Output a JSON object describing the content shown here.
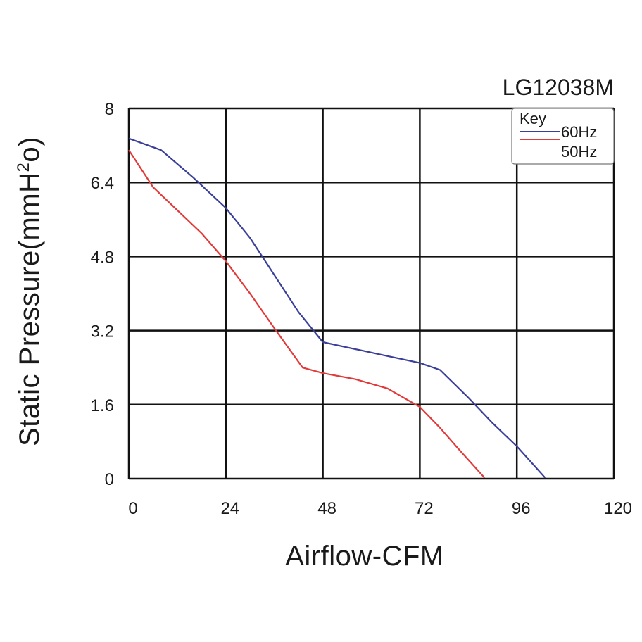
{
  "chart_data": {
    "type": "line",
    "title": "LG12038M",
    "xlabel": "Airflow-CFM",
    "ylabel": "Static Pressure(mmH",
    "ylabel_sup": "2",
    "ylabel_tail": "o)",
    "xlim": [
      0,
      120
    ],
    "ylim": [
      0,
      8
    ],
    "x_ticks": [
      0,
      24,
      48,
      72,
      96,
      120
    ],
    "x_tick_labels": [
      "0",
      "24",
      "48",
      "72",
      "96",
      "120"
    ],
    "y_ticks": [
      0,
      1.6,
      3.2,
      4.8,
      6.4,
      8
    ],
    "y_tick_labels": [
      "0",
      "1.6",
      "3.2",
      "4.8",
      "6.4",
      "8"
    ],
    "grid": true,
    "legend": {
      "title": "Key",
      "placement": "top-right"
    },
    "series": [
      {
        "name": "60Hz",
        "color": "#3a3f9a",
        "points": [
          [
            0,
            7.35
          ],
          [
            8,
            7.1
          ],
          [
            16,
            6.5
          ],
          [
            24,
            5.85
          ],
          [
            30,
            5.2
          ],
          [
            36,
            4.4
          ],
          [
            42,
            3.6
          ],
          [
            48,
            2.95
          ],
          [
            56,
            2.8
          ],
          [
            64,
            2.65
          ],
          [
            72,
            2.5
          ],
          [
            77,
            2.35
          ],
          [
            84,
            1.75
          ],
          [
            90,
            1.2
          ],
          [
            96,
            0.7
          ],
          [
            103,
            0.02
          ]
        ]
      },
      {
        "name": "50Hz",
        "color": "#e23a3a",
        "points": [
          [
            0,
            7.1
          ],
          [
            6,
            6.3
          ],
          [
            12,
            5.8
          ],
          [
            18,
            5.3
          ],
          [
            24,
            4.7
          ],
          [
            30,
            4.0
          ],
          [
            36,
            3.25
          ],
          [
            43,
            2.4
          ],
          [
            48,
            2.28
          ],
          [
            56,
            2.15
          ],
          [
            64,
            1.95
          ],
          [
            72,
            1.55
          ],
          [
            77,
            1.1
          ],
          [
            82,
            0.6
          ],
          [
            88,
            0.02
          ]
        ]
      }
    ]
  }
}
